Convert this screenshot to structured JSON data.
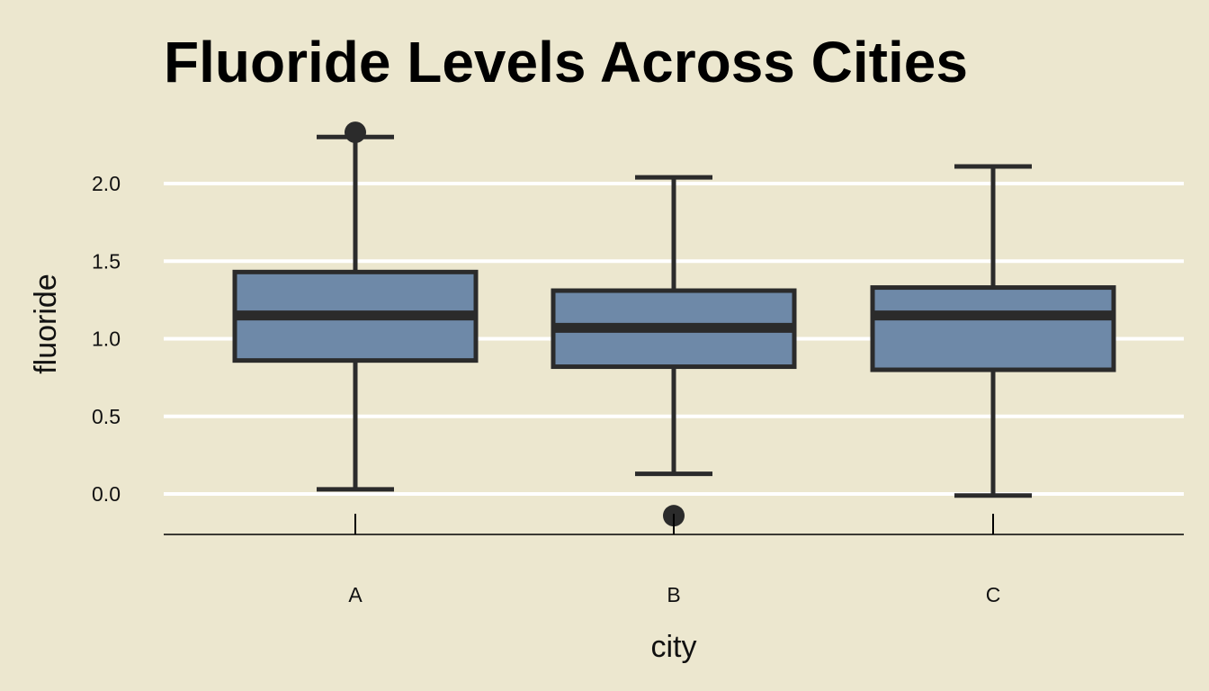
{
  "chart_data": {
    "type": "box",
    "title": "Fluoride Levels Across Cities",
    "xlabel": "city",
    "ylabel": "fluoride",
    "ylim": [
      -0.26,
      2.5
    ],
    "yticks": [
      "0.0",
      "0.5",
      "1.0",
      "1.5",
      "2.0"
    ],
    "ytick_values": [
      0.0,
      0.5,
      1.0,
      1.5,
      2.0
    ],
    "grid": "horizontal",
    "categories": [
      "A",
      "B",
      "C"
    ],
    "boxes": [
      {
        "category": "A",
        "whisker_low": 0.03,
        "q1": 0.86,
        "median": 1.15,
        "q3": 1.43,
        "whisker_high": 2.3,
        "outliers": [
          2.33
        ]
      },
      {
        "category": "B",
        "whisker_low": 0.13,
        "q1": 0.82,
        "median": 1.07,
        "q3": 1.31,
        "whisker_high": 2.04,
        "outliers": [
          -0.14
        ]
      },
      {
        "category": "C",
        "whisker_low": -0.01,
        "q1": 0.8,
        "median": 1.15,
        "q3": 1.33,
        "whisker_high": 2.11,
        "outliers": []
      }
    ],
    "colors": {
      "background": "#ece7cf",
      "box_fill": "#6e89a8",
      "box_edge": "#2b2b2b",
      "grid": "#ffffff"
    }
  }
}
